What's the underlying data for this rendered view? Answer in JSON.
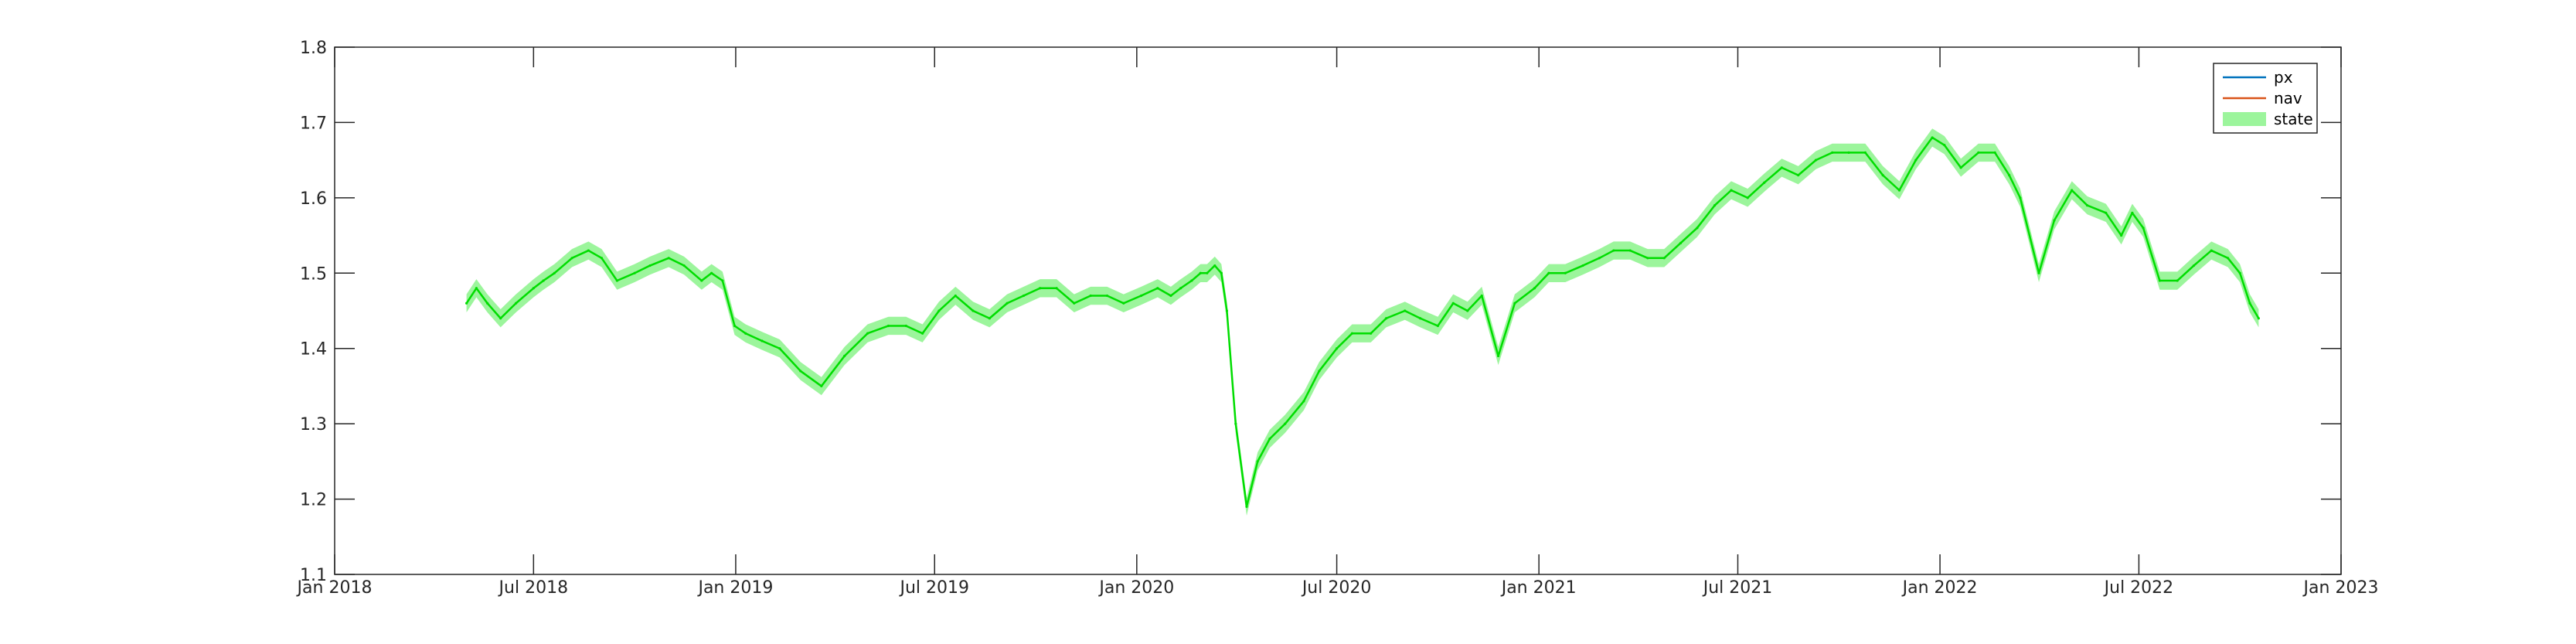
{
  "chart_data": {
    "type": "line",
    "title": "",
    "xlabel": "",
    "ylabel": "",
    "xlim": [
      "2018-01-01",
      "2023-01-01"
    ],
    "ylim": [
      1.1,
      1.8
    ],
    "x_ticks": [
      "Jan 2018",
      "Jul 2018",
      "Jan 2019",
      "Jul 2019",
      "Jan 2020",
      "Jul 2020",
      "Jan 2021",
      "Jul 2021",
      "Jan 2022",
      "Jul 2022",
      "Jan 2023"
    ],
    "y_ticks": [
      "1.1",
      "1.2",
      "1.3",
      "1.4",
      "1.5",
      "1.6",
      "1.7",
      "1.8"
    ],
    "grid": false,
    "legend_position": "top-right",
    "legend": [
      {
        "label": "px",
        "color": "#0072BD",
        "kind": "line"
      },
      {
        "label": "nav",
        "color": "#D95319",
        "kind": "line"
      },
      {
        "label": "state",
        "color": "#9CF59C",
        "kind": "band"
      }
    ],
    "state_line_color": "#00DD00",
    "state_band_color": "#9CF59C",
    "state_band_halfwidth": 0.012,
    "series": [
      {
        "name": "state",
        "x": [
          "2018-05-01",
          "2018-05-10",
          "2018-05-20",
          "2018-06-01",
          "2018-06-15",
          "2018-07-01",
          "2018-07-10",
          "2018-07-20",
          "2018-08-05",
          "2018-08-20",
          "2018-09-01",
          "2018-09-15",
          "2018-10-01",
          "2018-10-15",
          "2018-11-01",
          "2018-11-15",
          "2018-12-01",
          "2018-12-10",
          "2018-12-20",
          "2018-12-31",
          "2019-01-10",
          "2019-01-25",
          "2019-02-10",
          "2019-03-01",
          "2019-03-20",
          "2019-04-10",
          "2019-05-01",
          "2019-05-20",
          "2019-06-05",
          "2019-06-20",
          "2019-07-05",
          "2019-07-20",
          "2019-08-05",
          "2019-08-20",
          "2019-09-05",
          "2019-09-20",
          "2019-10-05",
          "2019-10-20",
          "2019-11-05",
          "2019-11-20",
          "2019-12-05",
          "2019-12-20",
          "2020-01-05",
          "2020-01-20",
          "2020-02-01",
          "2020-02-10",
          "2020-02-20",
          "2020-02-28",
          "2020-03-05",
          "2020-03-12",
          "2020-03-18",
          "2020-03-23",
          "2020-03-31",
          "2020-04-10",
          "2020-04-20",
          "2020-05-01",
          "2020-05-15",
          "2020-06-01",
          "2020-06-15",
          "2020-07-01",
          "2020-07-15",
          "2020-08-01",
          "2020-08-15",
          "2020-09-01",
          "2020-09-15",
          "2020-10-01",
          "2020-10-15",
          "2020-10-28",
          "2020-11-10",
          "2020-11-25",
          "2020-12-10",
          "2020-12-28",
          "2021-01-10",
          "2021-01-25",
          "2021-02-10",
          "2021-02-25",
          "2021-03-10",
          "2021-03-25",
          "2021-04-10",
          "2021-04-25",
          "2021-05-10",
          "2021-05-25",
          "2021-06-10",
          "2021-06-25",
          "2021-07-10",
          "2021-07-25",
          "2021-08-10",
          "2021-08-25",
          "2021-09-10",
          "2021-09-25",
          "2021-10-10",
          "2021-10-25",
          "2021-11-10",
          "2021-11-25",
          "2021-12-10",
          "2021-12-25",
          "2022-01-05",
          "2022-01-20",
          "2022-02-05",
          "2022-02-20",
          "2022-03-05",
          "2022-03-15",
          "2022-04-01",
          "2022-04-15",
          "2022-05-01",
          "2022-05-15",
          "2022-06-01",
          "2022-06-15",
          "2022-06-25",
          "2022-07-05",
          "2022-07-20",
          "2022-08-05",
          "2022-08-20",
          "2022-09-05",
          "2022-09-20",
          "2022-10-01",
          "2022-10-10",
          "2022-10-18"
        ],
        "y": [
          1.46,
          1.48,
          1.46,
          1.44,
          1.46,
          1.48,
          1.49,
          1.5,
          1.52,
          1.53,
          1.52,
          1.49,
          1.5,
          1.51,
          1.52,
          1.51,
          1.49,
          1.5,
          1.49,
          1.43,
          1.42,
          1.41,
          1.4,
          1.37,
          1.35,
          1.39,
          1.42,
          1.43,
          1.43,
          1.42,
          1.45,
          1.47,
          1.45,
          1.44,
          1.46,
          1.47,
          1.48,
          1.48,
          1.46,
          1.47,
          1.47,
          1.46,
          1.47,
          1.48,
          1.47,
          1.48,
          1.49,
          1.5,
          1.5,
          1.51,
          1.5,
          1.45,
          1.3,
          1.19,
          1.25,
          1.28,
          1.3,
          1.33,
          1.37,
          1.4,
          1.42,
          1.42,
          1.44,
          1.45,
          1.44,
          1.43,
          1.46,
          1.45,
          1.47,
          1.39,
          1.46,
          1.48,
          1.5,
          1.5,
          1.51,
          1.52,
          1.53,
          1.53,
          1.52,
          1.52,
          1.54,
          1.56,
          1.59,
          1.61,
          1.6,
          1.62,
          1.64,
          1.63,
          1.65,
          1.66,
          1.66,
          1.66,
          1.63,
          1.61,
          1.65,
          1.68,
          1.67,
          1.64,
          1.66,
          1.66,
          1.63,
          1.6,
          1.5,
          1.57,
          1.61,
          1.59,
          1.58,
          1.55,
          1.58,
          1.56,
          1.49,
          1.49,
          1.51,
          1.53,
          1.52,
          1.5,
          1.46,
          1.44
        ]
      }
    ]
  }
}
